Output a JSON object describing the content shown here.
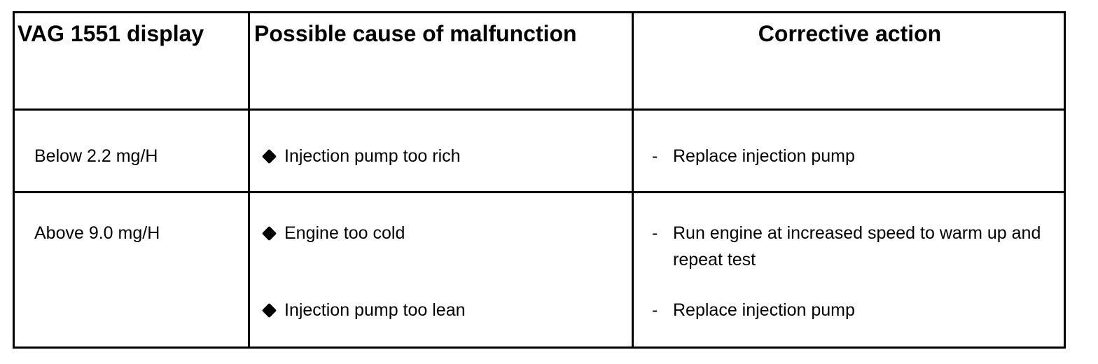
{
  "headers": {
    "display": "VAG 1551 display",
    "cause": "Possible cause of malfunction",
    "action": "Corrective action"
  },
  "rows": [
    {
      "display": "Below 2.2 mg/H",
      "causes": [
        "Injection pump too rich"
      ],
      "actions": [
        "Replace injection pump"
      ]
    },
    {
      "display": "Above 9.0 mg/H",
      "causes": [
        "Engine too cold",
        "Injection pump too lean"
      ],
      "actions": [
        "Run engine at increased speed to warm up and repeat test",
        "Replace injection pump"
      ]
    }
  ],
  "bullet_dash": "-",
  "icons": {
    "cause_bullet": "diamond-bullet-icon"
  }
}
